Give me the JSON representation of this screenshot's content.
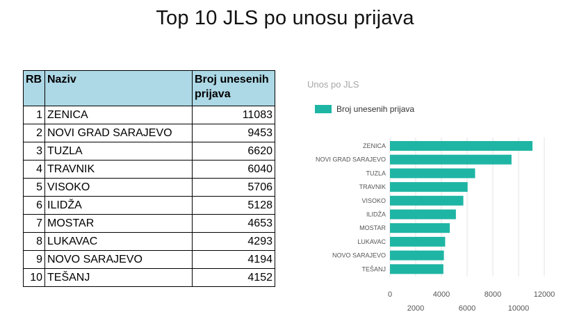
{
  "page_title": "Top 10 JLS po unosu prijava",
  "table": {
    "headers": {
      "rb": "RB",
      "naziv": "Naziv",
      "broj": "Broj unesenih prijava"
    },
    "rows": [
      {
        "rb": "1",
        "naziv": "ZENICA",
        "broj": "11083"
      },
      {
        "rb": "2",
        "naziv": "NOVI GRAD SARAJEVO",
        "broj": "9453"
      },
      {
        "rb": "3",
        "naziv": "TUZLA",
        "broj": "6620"
      },
      {
        "rb": "4",
        "naziv": "TRAVNIK",
        "broj": "6040"
      },
      {
        "rb": "5",
        "naziv": "VISOKO",
        "broj": "5706"
      },
      {
        "rb": "6",
        "naziv": "ILIDŽA",
        "broj": "5128"
      },
      {
        "rb": "7",
        "naziv": "MOSTAR",
        "broj": "4653"
      },
      {
        "rb": "8",
        "naziv": "LUKAVAC",
        "broj": "4293"
      },
      {
        "rb": "9",
        "naziv": "NOVO SARAJEVO",
        "broj": "4194"
      },
      {
        "rb": "10",
        "naziv": "TEŠANJ",
        "broj": "4152"
      }
    ]
  },
  "chart_data": {
    "type": "bar",
    "orientation": "horizontal",
    "title": "Unos po JLS",
    "categories": [
      "ZENICA",
      "NOVI GRAD SARAJEVO",
      "TUZLA",
      "TRAVNIK",
      "VISOKO",
      "ILIDŽA",
      "MOSTAR",
      "LUKAVAC",
      "NOVO SARAJEVO",
      "TEŠANJ"
    ],
    "series": [
      {
        "name": "Broj unesenih prijava",
        "values": [
          11083,
          9453,
          6620,
          6040,
          5706,
          5128,
          4653,
          4293,
          4194,
          4152
        ],
        "color": "#1fb5a4"
      }
    ],
    "xlim": [
      0,
      12000
    ],
    "xticks_upper": [
      "0",
      "4000",
      "8000",
      "12000"
    ],
    "xticks_lower": [
      "2000",
      "6000",
      "10000"
    ],
    "xticks_upper_values": [
      0,
      4000,
      8000,
      12000
    ],
    "xticks_lower_values": [
      2000,
      6000,
      10000
    ],
    "grid": true,
    "legend": "top-left"
  }
}
